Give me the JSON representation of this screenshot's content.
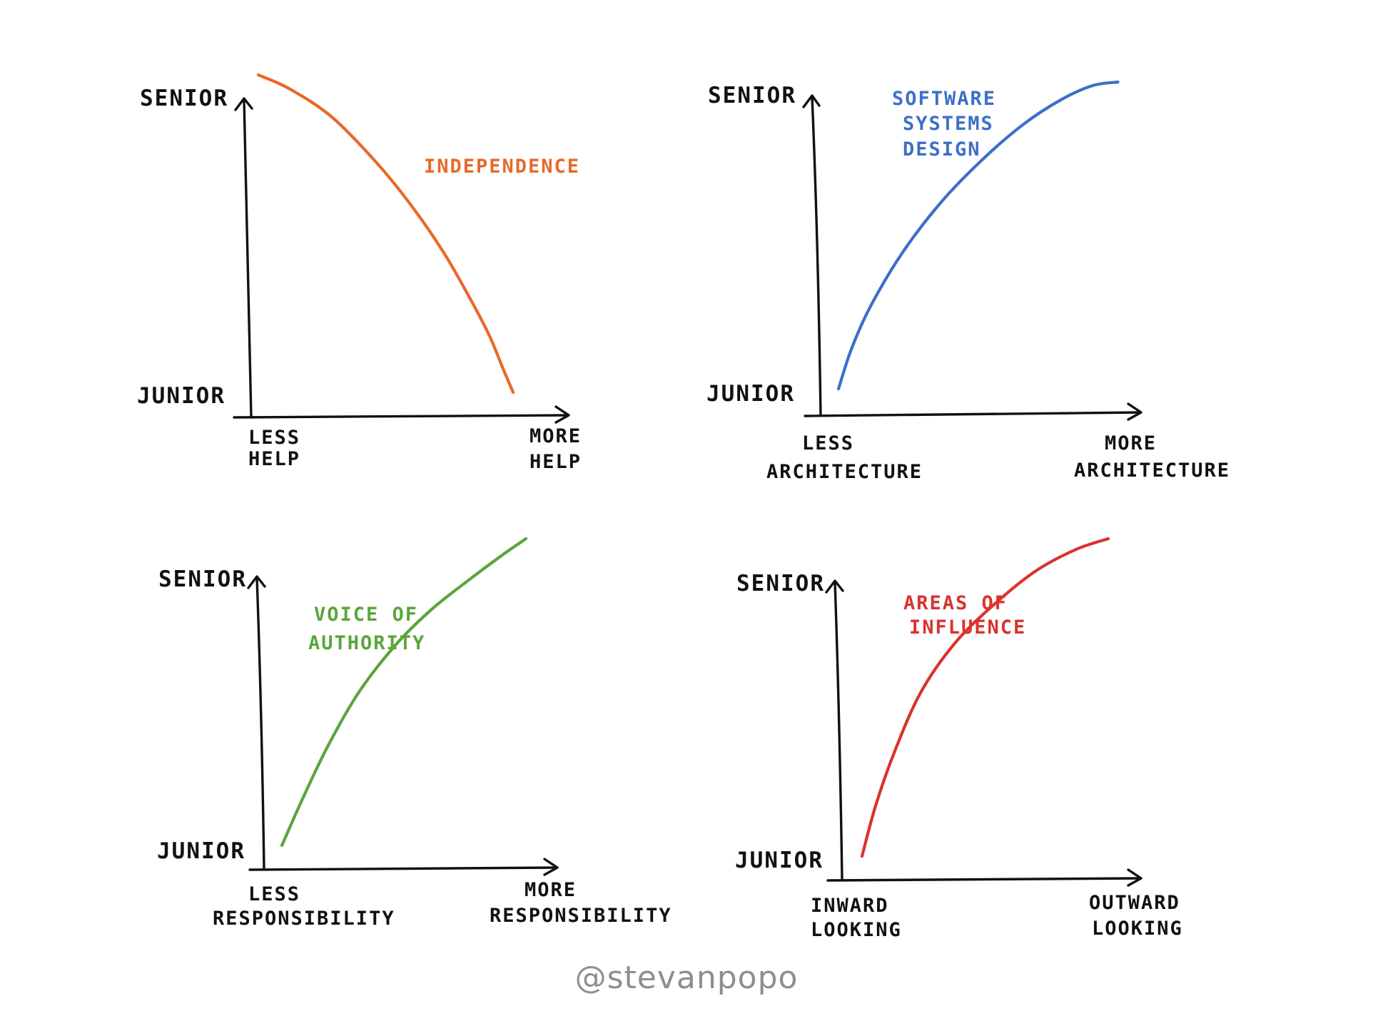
{
  "credit": "@stevanpopo",
  "chart_data": [
    {
      "type": "line",
      "ylabel_top": "SENIOR",
      "ylabel_bottom": "JUNIOR",
      "xlabel_left": [
        "LESS",
        "HELP"
      ],
      "xlabel_right": [
        "MORE",
        "HELP"
      ],
      "xlim": [
        0,
        1
      ],
      "ylim": [
        0,
        1
      ],
      "color": "#e8692a",
      "series": [
        {
          "name": "INDEPENDENCE",
          "x": [
            0.0,
            0.12,
            0.28,
            0.45,
            0.58,
            0.7,
            0.8,
            0.87,
            0.92,
            0.96
          ],
          "y": [
            0.95,
            0.91,
            0.83,
            0.7,
            0.58,
            0.45,
            0.32,
            0.22,
            0.13,
            0.06
          ]
        }
      ]
    },
    {
      "type": "line",
      "ylabel_top": "SENIOR",
      "ylabel_bottom": "JUNIOR",
      "xlabel_left": [
        "LESS",
        "ARCHITECTURE"
      ],
      "xlabel_right": [
        "MORE",
        "ARCHITECTURE"
      ],
      "xlim": [
        0,
        1
      ],
      "ylim": [
        0,
        1
      ],
      "color": "#3c6fc9",
      "series": [
        {
          "name": [
            "SOFTWARE",
            "SYSTEMS",
            "DESIGN"
          ],
          "x": [
            0.0,
            0.04,
            0.1,
            0.2,
            0.32,
            0.45,
            0.58,
            0.7,
            0.8,
            0.88
          ],
          "y": [
            0.07,
            0.18,
            0.3,
            0.45,
            0.59,
            0.71,
            0.81,
            0.88,
            0.92,
            0.93
          ]
        }
      ]
    },
    {
      "type": "line",
      "ylabel_top": "SENIOR",
      "ylabel_bottom": "JUNIOR",
      "xlabel_left": [
        "LESS",
        "RESPONSIBILITY"
      ],
      "xlabel_right": [
        "MORE",
        "RESPONSIBILITY"
      ],
      "xlim": [
        0,
        1
      ],
      "ylim": [
        0,
        1
      ],
      "color": "#5aa53c",
      "series": [
        {
          "name": [
            "VOICE OF",
            "AUTHORITY"
          ],
          "x": [
            0.0,
            0.08,
            0.18,
            0.3,
            0.44,
            0.58,
            0.72,
            0.85,
            0.95
          ],
          "y": [
            0.07,
            0.2,
            0.35,
            0.5,
            0.63,
            0.73,
            0.81,
            0.88,
            0.93
          ]
        }
      ]
    },
    {
      "type": "line",
      "ylabel_top": "SENIOR",
      "ylabel_bottom": "JUNIOR",
      "xlabel_left": [
        "INWARD",
        "LOOKING"
      ],
      "xlabel_right": [
        "OUTWARD",
        "LOOKING"
      ],
      "xlim": [
        0,
        1
      ],
      "ylim": [
        0,
        1
      ],
      "color": "#d9332e",
      "series": [
        {
          "name": [
            "AREAS OF",
            "INFLUENCE"
          ],
          "x": [
            0.0,
            0.05,
            0.12,
            0.22,
            0.35,
            0.5,
            0.65,
            0.8,
            0.92
          ],
          "y": [
            0.06,
            0.2,
            0.35,
            0.52,
            0.66,
            0.77,
            0.86,
            0.92,
            0.95
          ]
        }
      ]
    }
  ]
}
